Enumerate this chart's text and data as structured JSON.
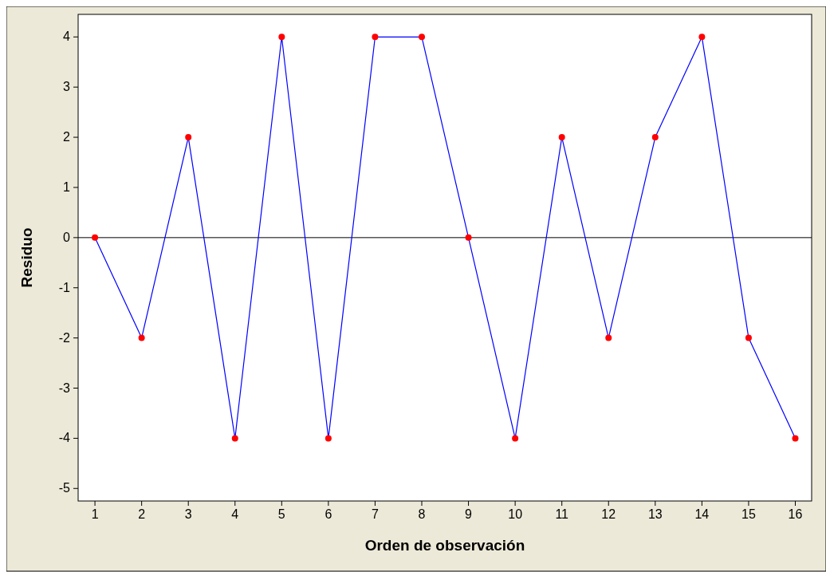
{
  "chart_data": {
    "type": "line",
    "xlabel": "Orden de observación",
    "ylabel": "Residuo",
    "x": [
      1,
      2,
      3,
      4,
      5,
      6,
      7,
      8,
      9,
      10,
      11,
      12,
      13,
      14,
      15,
      16
    ],
    "series": [
      {
        "color": "#0000ff",
        "colors": [
          "#ff0000",
          "#ff0000",
          "#ff0000",
          "#ff0000",
          "#ff0000",
          "#ff0000",
          "#ff0000",
          "#ff0000",
          "#ff0000",
          "#ff0000",
          "#ff0000",
          "#ff0000",
          "#ff0000",
          "#ff0000",
          "#ff0000",
          "#ff0000"
        ],
        "values": [
          0,
          -2,
          2,
          -4,
          4,
          -4,
          4,
          4,
          0,
          -4,
          2,
          -2,
          2,
          4,
          -2,
          -4
        ]
      }
    ],
    "marker": "circle",
    "line_style": "solid",
    "grid": false,
    "xlim": [
      0.64,
      16.35
    ],
    "xticks": [
      1,
      2,
      3,
      4,
      5,
      6,
      7,
      8,
      9,
      10,
      11,
      12,
      13,
      14,
      15,
      16
    ],
    "ylim": [
      -5.25,
      4.45
    ],
    "yticks": [
      -5,
      -4,
      -3,
      -2,
      -1,
      0,
      1,
      2,
      3,
      4
    ],
    "ref_lines": [
      {
        "axis": "y",
        "value": 0,
        "color": "#000000"
      }
    ]
  }
}
